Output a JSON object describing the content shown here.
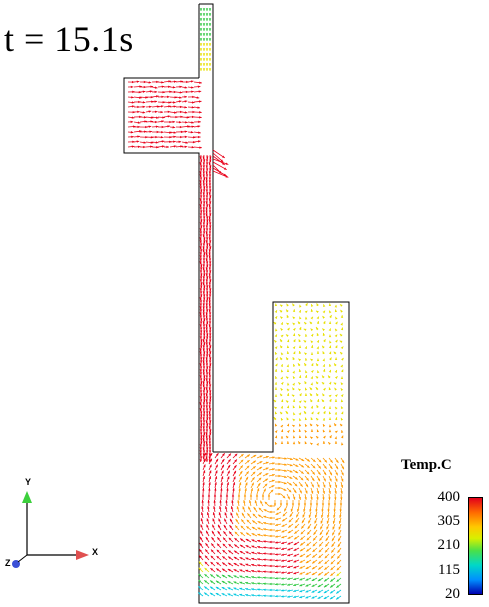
{
  "time_label": "t = 15.1s",
  "legend": {
    "title": "Temp.C",
    "ticks": [
      "400",
      "305",
      "210",
      "115",
      "20"
    ]
  },
  "triad": {
    "x": "X",
    "y": "Y",
    "z": "Z"
  },
  "colors": {
    "hot": "#e8001a",
    "warm": "#ff9a00",
    "mid": "#e8e000",
    "cool": "#2ec840",
    "cold": "#00c8e0"
  }
}
